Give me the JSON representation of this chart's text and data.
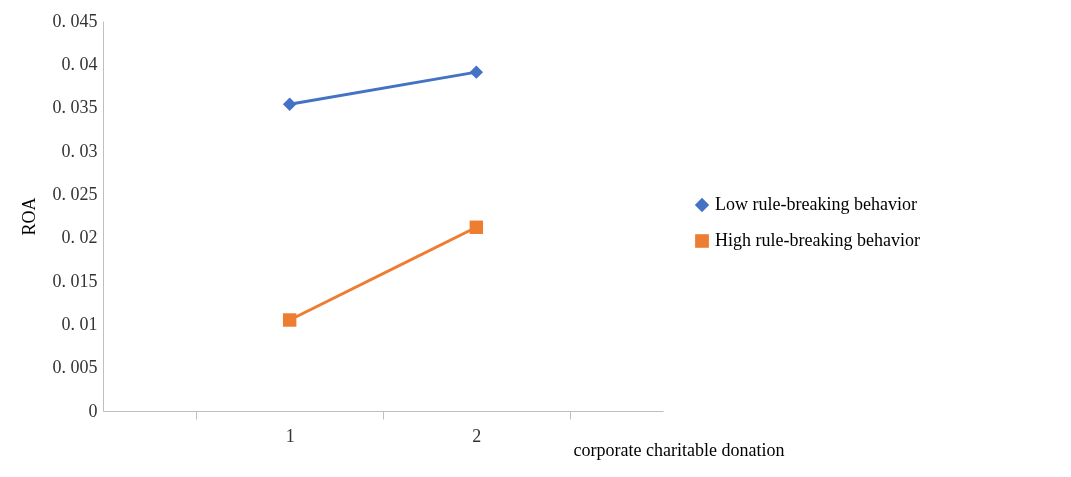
{
  "chart_data": {
    "type": "line",
    "xlabel": "corporate charitable donation",
    "ylabel": "ROA",
    "categories": [
      "1",
      "2"
    ],
    "series": [
      {
        "name": "Low rule-breaking behavior",
        "color": "#4472c4",
        "marker": "diamond",
        "values": [
          0.0354,
          0.0391
        ]
      },
      {
        "name": "High rule-breaking behavior",
        "color": "#ed7d31",
        "marker": "square",
        "values": [
          0.0105,
          0.0212
        ]
      }
    ],
    "ylim": [
      0,
      0.045
    ],
    "yticks": [
      0,
      0.005,
      0.01,
      0.015,
      0.02,
      0.025,
      0.03,
      0.035,
      0.04,
      0.045
    ],
    "grid": false,
    "legend": "right"
  }
}
